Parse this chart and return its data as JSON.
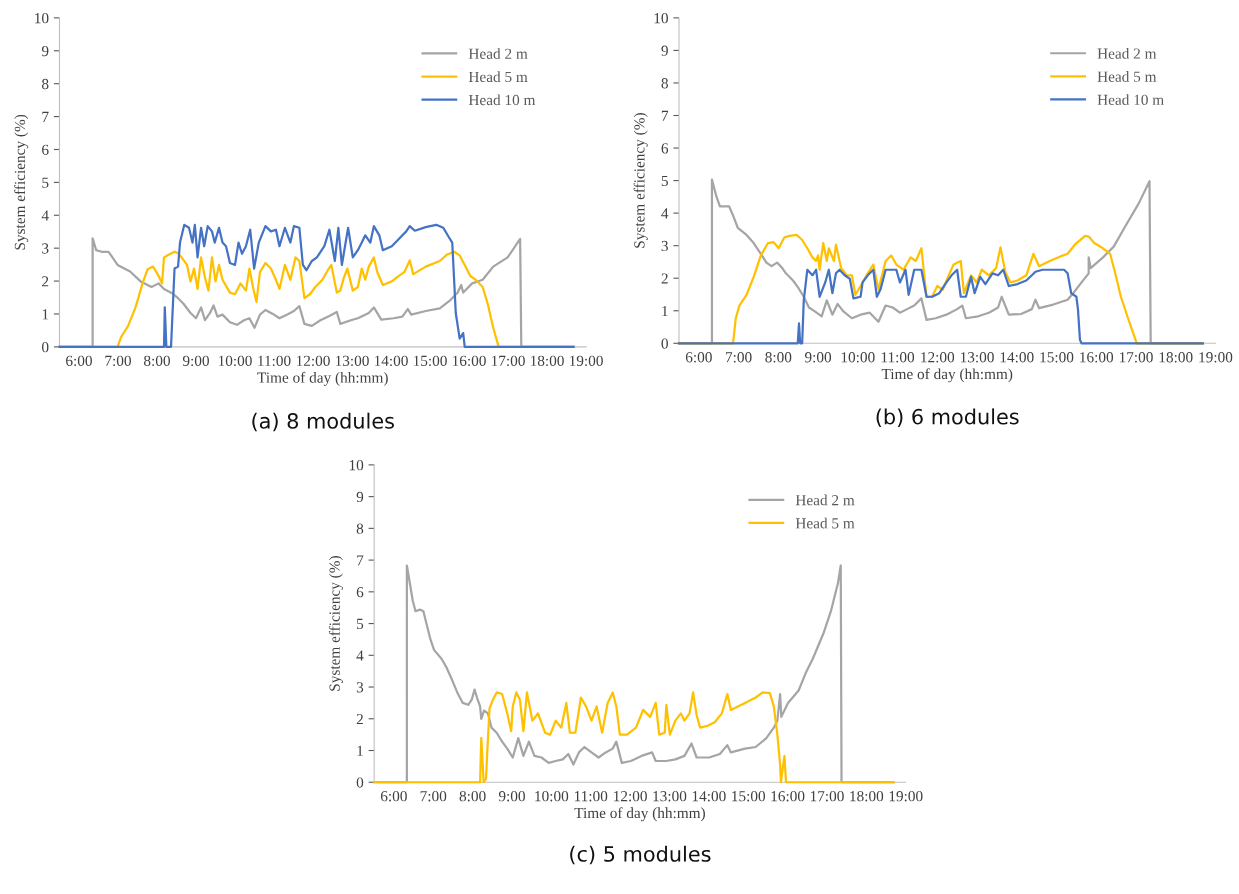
{
  "chart_data": [
    {
      "type": "line",
      "title": "(a) 8 modules",
      "xlabel": "Time of day (hh:mm)",
      "ylabel": "System efficiency (%)",
      "legend": "top right",
      "xlim": [
        5.5,
        19.0
      ],
      "xticks": [
        {
          "value": 6,
          "label": "6:00"
        },
        {
          "value": 7,
          "label": "7:00"
        },
        {
          "value": 8,
          "label": "8:00"
        },
        {
          "value": 9,
          "label": "9:00"
        },
        {
          "value": 10,
          "label": "10:00"
        },
        {
          "value": 11,
          "label": "11:00"
        },
        {
          "value": 12,
          "label": "12:00"
        },
        {
          "value": 13,
          "label": "13:00"
        },
        {
          "value": 14,
          "label": "14:00"
        },
        {
          "value": 15,
          "label": "15:00"
        },
        {
          "value": 16,
          "label": "16:00"
        },
        {
          "value": 17,
          "label": "17:00"
        },
        {
          "value": 18,
          "label": "18:00"
        },
        {
          "value": 19,
          "label": "19:00"
        }
      ],
      "ylim": [
        0,
        10
      ],
      "yticks": [
        0,
        1,
        2,
        3,
        4,
        5,
        6,
        7,
        8,
        9,
        10
      ],
      "series": [
        {
          "name": "Head 2 m",
          "color": "#a5a5a5",
          "x": [
            5.5,
            6.35,
            6.35,
            6.44,
            6.58,
            6.76,
            6.99,
            7.31,
            7.58,
            7.86,
            8.04,
            8.18,
            8.4,
            8.54,
            8.68,
            8.86,
            9.0,
            9.13,
            9.23,
            9.36,
            9.45,
            9.55,
            9.68,
            9.87,
            10.05,
            10.23,
            10.37,
            10.5,
            10.64,
            10.78,
            10.96,
            11.14,
            11.33,
            11.51,
            11.65,
            11.78,
            11.97,
            12.19,
            12.42,
            12.61,
            12.7,
            12.97,
            13.15,
            13.43,
            13.56,
            13.75,
            14.07,
            14.29,
            14.43,
            14.52,
            14.89,
            15.25,
            15.53,
            15.71,
            15.8,
            15.85,
            16.08,
            16.35,
            16.62,
            16.99,
            17.31,
            17.34,
            18.68
          ],
          "values": [
            0,
            0,
            3.3,
            2.94,
            2.89,
            2.89,
            2.49,
            2.29,
            1.99,
            1.82,
            1.93,
            1.76,
            1.62,
            1.48,
            1.31,
            1.03,
            0.87,
            1.2,
            0.81,
            1.03,
            1.26,
            0.92,
            0.98,
            0.75,
            0.67,
            0.81,
            0.87,
            0.58,
            0.98,
            1.12,
            1.01,
            0.87,
            0.98,
            1.09,
            1.24,
            0.7,
            0.64,
            0.81,
            0.94,
            1.06,
            0.7,
            0.81,
            0.87,
            1.03,
            1.2,
            0.83,
            0.87,
            0.92,
            1.15,
            0.98,
            1.09,
            1.17,
            1.43,
            1.65,
            1.88,
            1.65,
            1.93,
            2.04,
            2.44,
            2.72,
            3.28,
            0,
            0
          ]
        },
        {
          "name": "Head 5 m",
          "color": "#ffc000",
          "x": [
            5.5,
            6.99,
            7.08,
            7.26,
            7.45,
            7.63,
            7.76,
            7.9,
            8.04,
            8.13,
            8.18,
            8.31,
            8.45,
            8.54,
            8.63,
            8.77,
            8.86,
            8.95,
            9.04,
            9.13,
            9.23,
            9.32,
            9.41,
            9.5,
            9.59,
            9.68,
            9.87,
            10.0,
            10.14,
            10.28,
            10.37,
            10.46,
            10.55,
            10.64,
            10.78,
            10.92,
            11.05,
            11.14,
            11.28,
            11.42,
            11.55,
            11.65,
            11.78,
            11.92,
            12.06,
            12.24,
            12.38,
            12.47,
            12.61,
            12.7,
            12.79,
            12.88,
            13.02,
            13.15,
            13.25,
            13.34,
            13.43,
            13.56,
            13.65,
            13.79,
            14.02,
            14.2,
            14.34,
            14.48,
            14.57,
            14.89,
            15.25,
            15.44,
            15.62,
            15.76,
            15.89,
            16.03,
            16.17,
            16.35,
            16.49,
            16.62,
            16.76,
            18.68
          ],
          "values": [
            0,
            0,
            0.3,
            0.64,
            1.2,
            1.93,
            2.36,
            2.44,
            2.16,
            1.93,
            2.72,
            2.81,
            2.89,
            2.85,
            2.72,
            2.49,
            1.99,
            2.38,
            1.76,
            2.72,
            2.1,
            1.71,
            2.72,
            1.99,
            2.49,
            2.04,
            1.65,
            1.6,
            1.93,
            1.71,
            2.38,
            1.82,
            1.37,
            2.27,
            2.55,
            2.38,
            2.04,
            1.76,
            2.49,
            2.04,
            2.72,
            2.61,
            1.48,
            1.6,
            1.82,
            2.04,
            2.33,
            2.49,
            1.65,
            1.71,
            2.1,
            2.38,
            1.71,
            1.82,
            2.38,
            2.04,
            2.44,
            2.72,
            2.27,
            1.88,
            1.99,
            2.16,
            2.27,
            2.63,
            2.21,
            2.44,
            2.61,
            2.81,
            2.89,
            2.78,
            2.49,
            2.16,
            2.04,
            1.82,
            1.26,
            0.58,
            0,
            0
          ]
        },
        {
          "name": "Head 10 m",
          "color": "#4472c4",
          "x": [
            5.5,
            8.18,
            8.2,
            8.24,
            8.36,
            8.45,
            8.54,
            8.59,
            8.7,
            8.82,
            8.91,
            8.97,
            9.04,
            9.13,
            9.21,
            9.3,
            9.41,
            9.48,
            9.59,
            9.68,
            9.77,
            9.87,
            10.0,
            10.09,
            10.18,
            10.28,
            10.39,
            10.49,
            10.61,
            10.78,
            10.92,
            11.05,
            11.14,
            11.28,
            11.42,
            11.51,
            11.65,
            11.74,
            11.83,
            11.97,
            12.1,
            12.29,
            12.42,
            12.56,
            12.65,
            12.74,
            12.9,
            13.02,
            13.15,
            13.25,
            13.34,
            13.47,
            13.56,
            13.7,
            13.79,
            14.02,
            14.2,
            14.39,
            14.48,
            14.61,
            14.89,
            15.16,
            15.34,
            15.48,
            15.57,
            15.66,
            15.76,
            15.85,
            15.89,
            18.68
          ],
          "values": [
            0,
            0,
            1.2,
            0,
            0,
            2.38,
            2.44,
            3.17,
            3.71,
            3.62,
            3.17,
            3.71,
            2.72,
            3.62,
            3.06,
            3.67,
            3.51,
            3.17,
            3.62,
            3.17,
            3.06,
            2.55,
            2.49,
            3.17,
            2.83,
            3.06,
            3.56,
            2.38,
            3.17,
            3.67,
            3.51,
            3.56,
            3.06,
            3.62,
            3.17,
            3.67,
            3.62,
            2.49,
            2.33,
            2.61,
            2.72,
            3.06,
            3.56,
            2.61,
            3.62,
            2.49,
            3.62,
            2.72,
            2.94,
            3.17,
            3.39,
            3.17,
            3.67,
            3.39,
            2.94,
            3.06,
            3.28,
            3.51,
            3.67,
            3.53,
            3.64,
            3.71,
            3.62,
            3.34,
            3.17,
            1.03,
            0.25,
            0.42,
            0,
            0
          ]
        }
      ]
    },
    {
      "type": "line",
      "title": "(b) 6 modules",
      "xlabel": "Time of day (hh:mm)",
      "ylabel": "System efficiency (%)",
      "legend": "top right",
      "xlim": [
        5.5,
        19.0
      ],
      "xticks": [
        {
          "value": 6,
          "label": "6:00"
        },
        {
          "value": 7,
          "label": "7:00"
        },
        {
          "value": 8,
          "label": "8:00"
        },
        {
          "value": 9,
          "label": "9:00"
        },
        {
          "value": 10,
          "label": "10:00"
        },
        {
          "value": 11,
          "label": "11:00"
        },
        {
          "value": 12,
          "label": "12:00"
        },
        {
          "value": 13,
          "label": "13:00"
        },
        {
          "value": 14,
          "label": "14:00"
        },
        {
          "value": 15,
          "label": "15:00"
        },
        {
          "value": 16,
          "label": "16:00"
        },
        {
          "value": 17,
          "label": "17:00"
        },
        {
          "value": 18,
          "label": "18:00"
        },
        {
          "value": 19,
          "label": "19:00"
        }
      ],
      "ylim": [
        0,
        10
      ],
      "yticks": [
        0,
        1,
        2,
        3,
        4,
        5,
        6,
        7,
        8,
        9,
        10
      ],
      "series": [
        {
          "name": "Head 2 m",
          "color": "#a5a5a5",
          "x": [
            5.5,
            6.33,
            6.33,
            6.44,
            6.53,
            6.76,
            6.85,
            6.98,
            7.2,
            7.38,
            7.56,
            7.7,
            7.83,
            7.97,
            8.1,
            8.19,
            8.37,
            8.5,
            8.64,
            8.77,
            8.91,
            9.09,
            9.22,
            9.36,
            9.49,
            9.63,
            9.85,
            10.07,
            10.3,
            10.52,
            10.7,
            10.88,
            11.06,
            11.24,
            11.42,
            11.6,
            11.73,
            11.96,
            12.23,
            12.5,
            12.63,
            12.72,
            13.03,
            13.3,
            13.53,
            13.62,
            13.8,
            14.11,
            14.38,
            14.47,
            14.56,
            14.92,
            15.28,
            15.46,
            15.63,
            15.81,
            15.81,
            15.86,
            16.17,
            16.44,
            16.71,
            17.07,
            17.34,
            17.37,
            18.68
          ],
          "values": [
            0,
            0,
            5.03,
            4.52,
            4.21,
            4.21,
            3.96,
            3.55,
            3.33,
            3.08,
            2.75,
            2.48,
            2.37,
            2.48,
            2.31,
            2.15,
            1.93,
            1.71,
            1.43,
            1.1,
            0.99,
            0.83,
            1.32,
            0.88,
            1.21,
            0.99,
            0.77,
            0.88,
            0.94,
            0.66,
            1.16,
            1.1,
            0.94,
            1.05,
            1.16,
            1.38,
            0.72,
            0.77,
            0.88,
            1.05,
            1.16,
            0.77,
            0.83,
            0.94,
            1.1,
            1.43,
            0.88,
            0.9,
            1.05,
            1.34,
            1.08,
            1.19,
            1.34,
            1.6,
            1.87,
            2.15,
            2.64,
            2.31,
            2.64,
            2.97,
            3.55,
            4.3,
            4.98,
            0,
            0
          ]
        },
        {
          "name": "Head 5 m",
          "color": "#ffc000",
          "x": [
            5.5,
            6.86,
            6.93,
            7.02,
            7.2,
            7.38,
            7.56,
            7.74,
            7.88,
            8.01,
            8.15,
            8.28,
            8.46,
            8.59,
            8.73,
            8.86,
            8.95,
            9.0,
            9.04,
            9.13,
            9.22,
            9.27,
            9.4,
            9.45,
            9.58,
            9.72,
            9.85,
            9.94,
            10.07,
            10.25,
            10.39,
            10.52,
            10.7,
            10.84,
            10.97,
            11.15,
            11.33,
            11.46,
            11.6,
            11.73,
            11.87,
            12.0,
            12.14,
            12.27,
            12.41,
            12.59,
            12.67,
            12.85,
            12.99,
            13.12,
            13.3,
            13.48,
            13.59,
            13.71,
            13.84,
            14.02,
            14.24,
            14.42,
            14.56,
            14.83,
            15.1,
            15.28,
            15.46,
            15.72,
            15.81,
            15.95,
            16.17,
            16.35,
            16.49,
            16.62,
            16.8,
            17.02,
            18.68
          ],
          "values": [
            0,
            0,
            0.77,
            1.16,
            1.49,
            2.04,
            2.7,
            3.08,
            3.11,
            2.92,
            3.25,
            3.3,
            3.33,
            3.19,
            2.92,
            2.64,
            2.53,
            2.7,
            2.26,
            3.08,
            2.53,
            2.92,
            2.53,
            3.03,
            2.31,
            2.09,
            2.09,
            1.49,
            1.76,
            2.15,
            2.42,
            1.65,
            2.53,
            2.7,
            2.42,
            2.26,
            2.64,
            2.53,
            2.92,
            1.43,
            1.43,
            1.76,
            1.65,
            2.04,
            2.42,
            2.53,
            1.54,
            2.09,
            1.87,
            2.26,
            2.09,
            2.31,
            2.95,
            2.2,
            1.87,
            1.93,
            2.09,
            2.75,
            2.37,
            2.53,
            2.67,
            2.75,
            3.03,
            3.3,
            3.28,
            3.08,
            2.92,
            2.75,
            2.09,
            1.43,
            0.77,
            0,
            0
          ]
        },
        {
          "name": "Head 10 m",
          "color": "#4472c4",
          "x": [
            5.5,
            8.49,
            8.52,
            8.55,
            8.6,
            8.64,
            8.73,
            8.86,
            8.95,
            9.04,
            9.11,
            9.18,
            9.27,
            9.36,
            9.45,
            9.54,
            9.67,
            9.8,
            9.89,
            10.07,
            10.12,
            10.25,
            10.39,
            10.48,
            10.57,
            10.7,
            10.97,
            11.06,
            11.2,
            11.28,
            11.42,
            11.6,
            11.73,
            11.87,
            12.05,
            12.23,
            12.36,
            12.5,
            12.59,
            12.72,
            12.85,
            12.94,
            13.08,
            13.21,
            13.39,
            13.53,
            13.66,
            13.8,
            14.02,
            14.24,
            14.38,
            14.47,
            14.65,
            15.19,
            15.28,
            15.37,
            15.5,
            15.54,
            15.59,
            15.63,
            18.68
          ],
          "values": [
            0,
            0,
            0.61,
            0,
            0,
            1.32,
            2.26,
            2.09,
            2.26,
            1.43,
            1.65,
            1.87,
            2.26,
            1.54,
            2.15,
            2.26,
            2.09,
            1.98,
            1.38,
            1.43,
            1.87,
            2.09,
            2.26,
            1.43,
            1.65,
            2.26,
            2.26,
            1.87,
            2.26,
            1.49,
            2.26,
            2.26,
            1.43,
            1.43,
            1.54,
            1.87,
            2.09,
            2.26,
            1.43,
            1.43,
            2.04,
            1.54,
            2.04,
            1.82,
            2.15,
            2.09,
            2.26,
            1.76,
            1.82,
            1.93,
            2.09,
            2.2,
            2.26,
            2.26,
            2.15,
            1.54,
            1.43,
            1.05,
            0.11,
            0,
            0
          ]
        }
      ]
    },
    {
      "type": "line",
      "title": "(c) 5 modules",
      "xlabel": "Time of day (hh:mm)",
      "ylabel": "System efficiency (%)",
      "legend": "top right",
      "xlim": [
        5.5,
        19.0
      ],
      "xticks": [
        {
          "value": 6,
          "label": "6:00"
        },
        {
          "value": 7,
          "label": "7:00"
        },
        {
          "value": 8,
          "label": "8:00"
        },
        {
          "value": 9,
          "label": "9:00"
        },
        {
          "value": 10,
          "label": "10:00"
        },
        {
          "value": 11,
          "label": "11:00"
        },
        {
          "value": 12,
          "label": "12:00"
        },
        {
          "value": 13,
          "label": "13:00"
        },
        {
          "value": 14,
          "label": "14:00"
        },
        {
          "value": 15,
          "label": "15:00"
        },
        {
          "value": 16,
          "label": "16:00"
        },
        {
          "value": 17,
          "label": "17:00"
        },
        {
          "value": 18,
          "label": "18:00"
        },
        {
          "value": 19,
          "label": "19:00"
        }
      ],
      "ylim": [
        0,
        10
      ],
      "yticks": [
        0,
        1,
        2,
        3,
        4,
        5,
        6,
        7,
        8,
        9,
        10
      ],
      "series": [
        {
          "name": "Head 2 m",
          "color": "#a5a5a5",
          "x": [
            5.5,
            6.33,
            6.33,
            6.39,
            6.48,
            6.55,
            6.66,
            6.75,
            6.84,
            6.93,
            7.02,
            7.21,
            7.34,
            7.48,
            7.61,
            7.75,
            7.89,
            7.98,
            8.05,
            8.11,
            8.19,
            8.22,
            8.29,
            8.39,
            8.48,
            8.61,
            8.75,
            8.88,
            9.02,
            9.16,
            9.29,
            9.43,
            9.57,
            9.75,
            9.93,
            10.11,
            10.29,
            10.43,
            10.56,
            10.7,
            10.84,
            11.02,
            11.2,
            11.38,
            11.56,
            11.65,
            11.79,
            12.02,
            12.29,
            12.56,
            12.65,
            12.92,
            13.15,
            13.38,
            13.56,
            13.69,
            14.01,
            14.28,
            14.47,
            14.56,
            14.92,
            15.19,
            15.46,
            15.65,
            15.74,
            15.81,
            15.84,
            16.01,
            16.28,
            16.46,
            16.64,
            16.92,
            17.1,
            17.28,
            17.35,
            17.37,
            18.69
          ],
          "values": [
            0,
            0,
            6.83,
            6.39,
            5.72,
            5.39,
            5.44,
            5.39,
            4.94,
            4.5,
            4.17,
            3.89,
            3.61,
            3.22,
            2.83,
            2.5,
            2.44,
            2.61,
            2.92,
            2.67,
            2.39,
            2.0,
            2.26,
            2.17,
            1.72,
            1.56,
            1.28,
            1.06,
            0.78,
            1.39,
            0.83,
            1.28,
            0.83,
            0.78,
            0.61,
            0.67,
            0.72,
            0.89,
            0.56,
            0.94,
            1.11,
            0.94,
            0.78,
            0.94,
            1.06,
            1.28,
            0.61,
            0.67,
            0.83,
            0.94,
            0.67,
            0.67,
            0.72,
            0.83,
            1.22,
            0.78,
            0.78,
            0.89,
            1.17,
            0.94,
            1.06,
            1.11,
            1.39,
            1.72,
            1.94,
            2.78,
            2.06,
            2.5,
            2.89,
            3.44,
            3.89,
            4.72,
            5.39,
            6.28,
            6.83,
            0,
            0
          ]
        },
        {
          "name": "Head 5 m",
          "color": "#ffc000",
          "x": [
            5.5,
            8.19,
            8.22,
            8.28,
            8.34,
            8.39,
            8.43,
            8.52,
            8.61,
            8.75,
            8.88,
            8.98,
            9.02,
            9.11,
            9.2,
            9.29,
            9.38,
            9.52,
            9.66,
            9.84,
            9.97,
            10.11,
            10.25,
            10.38,
            10.47,
            10.61,
            10.75,
            10.88,
            11.02,
            11.15,
            11.29,
            11.43,
            11.56,
            11.65,
            11.74,
            11.92,
            12.15,
            12.33,
            12.51,
            12.65,
            12.74,
            12.88,
            12.92,
            13.01,
            13.15,
            13.29,
            13.38,
            13.51,
            13.6,
            13.69,
            13.78,
            13.97,
            14.15,
            14.33,
            14.47,
            14.56,
            14.92,
            15.19,
            15.37,
            15.55,
            15.65,
            15.74,
            15.81,
            15.83,
            15.92,
            15.96,
            18.69
          ],
          "values": [
            0,
            0,
            1.39,
            0,
            0.11,
            1.39,
            2.33,
            2.61,
            2.83,
            2.78,
            2.17,
            1.61,
            2.39,
            2.83,
            2.61,
            1.61,
            2.83,
            1.94,
            2.17,
            1.56,
            1.5,
            1.94,
            1.72,
            2.5,
            1.56,
            1.56,
            2.67,
            2.39,
            1.94,
            2.39,
            1.56,
            2.5,
            2.83,
            2.39,
            1.5,
            1.5,
            1.72,
            2.28,
            2.06,
            2.5,
            1.5,
            1.56,
            2.44,
            1.5,
            1.94,
            2.17,
            1.94,
            2.17,
            2.83,
            2.11,
            1.72,
            1.78,
            1.89,
            2.17,
            2.78,
            2.28,
            2.5,
            2.67,
            2.83,
            2.81,
            2.39,
            1.5,
            0.56,
            0,
            0.83,
            0,
            0
          ]
        }
      ]
    }
  ]
}
